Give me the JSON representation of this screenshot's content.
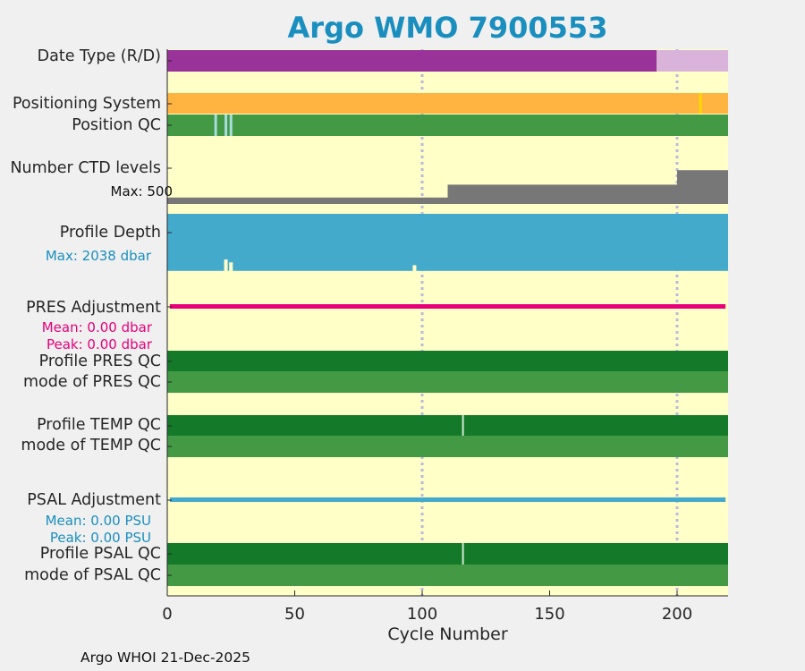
{
  "chart_data": {
    "type": "bar",
    "title": "Argo WMO 7900553",
    "xlabel": "Cycle Number",
    "xlim": [
      0,
      220
    ],
    "xticks": [
      0,
      50,
      100,
      150,
      200
    ],
    "xtick_labels": [
      "0",
      "50",
      "100",
      "150",
      "200"
    ],
    "vertical_gridlines_at": [
      100,
      200
    ],
    "footer": "Argo WHOI 21-Dec-2025",
    "rows": {
      "date_type": {
        "label": "Date Type (R/D)",
        "segments": [
          {
            "from": 0,
            "to": 192,
            "value": "D",
            "color": "#993399"
          },
          {
            "from": 192,
            "to": 220,
            "value": "R",
            "color": "#d9b3d9"
          }
        ]
      },
      "positioning_system": {
        "label": "Positioning System",
        "color": "#ffb340",
        "highlight_cycle": 209,
        "highlight_color": "#ffd700"
      },
      "position_qc": {
        "label": "Position QC",
        "color": "#449944",
        "flagged_cycles": [
          19,
          23,
          25
        ],
        "flag_color": "#a8dcdc"
      },
      "ctd_levels": {
        "label": "Number CTD levels",
        "max_label": "Max: 500",
        "max": 500,
        "color": "#777777",
        "segments": [
          {
            "from": 0,
            "to": 110,
            "value": 80
          },
          {
            "from": 110,
            "to": 200,
            "value": 240
          },
          {
            "from": 200,
            "to": 220,
            "value": 420
          }
        ]
      },
      "profile_depth": {
        "label": "Profile Depth",
        "max_label": "Max: 2038 dbar",
        "max": 2038,
        "color": "#44aacc",
        "typical": 2000,
        "dips": [
          {
            "cycle": 23,
            "value": 1600
          },
          {
            "cycle": 25,
            "value": 1700
          },
          {
            "cycle": 97,
            "value": 1800
          }
        ]
      },
      "pres_adjustment": {
        "label": "PRES Adjustment",
        "mean_label": "Mean: 0.00 dbar",
        "peak_label": "Peak: 0.00 dbar",
        "color": "#e8007a"
      },
      "profile_pres_qc": {
        "label": "Profile PRES QC",
        "color": "#147a2a"
      },
      "mode_pres_qc": {
        "label": "mode of PRES QC",
        "color": "#449944"
      },
      "profile_temp_qc": {
        "label": "Profile TEMP QC",
        "color": "#147a2a",
        "flagged_cycles": [
          116
        ],
        "flag_color": "#cfe8cf"
      },
      "mode_temp_qc": {
        "label": "mode of TEMP QC",
        "color": "#449944"
      },
      "psal_adjustment": {
        "label": "PSAL Adjustment",
        "mean_label": "Mean: 0.00 PSU",
        "peak_label": "Peak: 0.00 PSU",
        "color": "#44aacc"
      },
      "profile_psal_qc": {
        "label": "Profile PSAL QC",
        "color": "#147a2a",
        "flagged_cycles": [
          116
        ],
        "flag_color": "#cfe8cf"
      },
      "mode_psal_qc": {
        "label": "mode of PSAL QC",
        "color": "#449944"
      }
    }
  }
}
